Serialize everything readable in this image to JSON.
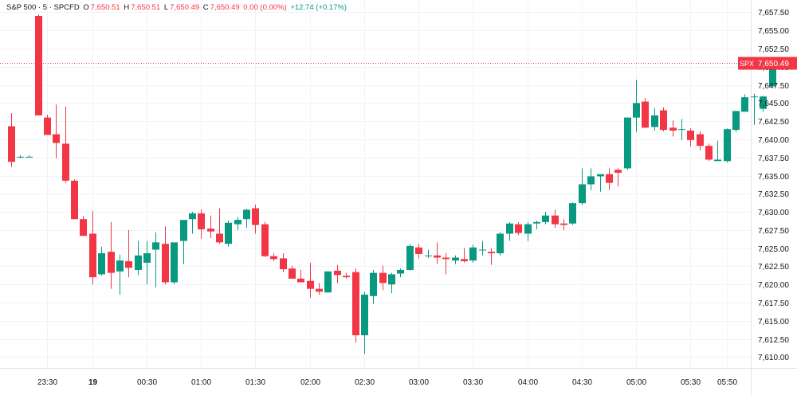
{
  "header": {
    "symbol": "S&P 500 · 5 · SPCFD",
    "o_label": "O",
    "o_value": "7,650.51",
    "h_label": "H",
    "h_value": "7,650.51",
    "l_label": "L",
    "l_value": "7,650.49",
    "c_label": "C",
    "c_value": "7,650.49",
    "change": "0.00 (0.00%)",
    "day_change": "+12.74 (+0.17%)"
  },
  "price_tag": {
    "symbol": "SPX",
    "value": "7,650.49"
  },
  "colors": {
    "up": "#089981",
    "down": "#f23645",
    "grid": "#f0f3fa",
    "axis_text": "#131722",
    "price_line": "#f23645"
  },
  "chart_data": {
    "type": "candlestick",
    "ylim": [
      7608.5,
      7659.2
    ],
    "yticks": [
      7610,
      7612.5,
      7615,
      7617.5,
      7620,
      7622.5,
      7625,
      7627.5,
      7630,
      7632.5,
      7635,
      7637.5,
      7640,
      7642.5,
      7645,
      7647.5,
      7650,
      7652.5,
      7655,
      7657.5
    ],
    "ytick_labels": [
      "7,610.00",
      "7,612.50",
      "7,615.00",
      "7,617.50",
      "7,620.00",
      "7,622.50",
      "7,625.00",
      "7,627.50",
      "7,630.00",
      "7,632.50",
      "7,635.00",
      "7,637.50",
      "7,640.00",
      "7,642.50",
      "7,645.00",
      "7,647.50",
      "7,650.00",
      "7,652.50",
      "7,655.00",
      "7,657.50"
    ],
    "xticks": [
      {
        "index": 4,
        "label": "23:30",
        "bold": false
      },
      {
        "index": 9,
        "label": "19",
        "bold": true
      },
      {
        "index": 15,
        "label": "00:30",
        "bold": false
      },
      {
        "index": 21,
        "label": "01:00",
        "bold": false
      },
      {
        "index": 27,
        "label": "01:30",
        "bold": false
      },
      {
        "index": 33,
        "label": "02:00",
        "bold": false
      },
      {
        "index": 39,
        "label": "02:30",
        "bold": false
      },
      {
        "index": 45,
        "label": "03:00",
        "bold": false
      },
      {
        "index": 51,
        "label": "03:30",
        "bold": false
      },
      {
        "index": 57,
        "label": "04:00",
        "bold": false
      },
      {
        "index": 63,
        "label": "04:30",
        "bold": false
      },
      {
        "index": 69,
        "label": "05:00",
        "bold": false
      },
      {
        "index": 75,
        "label": "05:30",
        "bold": false
      },
      {
        "index": 79,
        "label": "05:50",
        "bold": false
      }
    ],
    "candles": [
      {
        "o": 7641.8,
        "h": 7643.6,
        "l": 7636.2,
        "c": 7636.9
      },
      {
        "o": 7637.6,
        "h": 7637.8,
        "l": 7637.4,
        "c": 7637.6
      },
      {
        "o": 7637.6,
        "h": 7637.8,
        "l": 7637.5,
        "c": 7637.6
      },
      {
        "o": 7657.0,
        "h": 7657.2,
        "l": 7643.3,
        "c": 7643.3
      },
      {
        "o": 7643.0,
        "h": 7643.4,
        "l": 7640.6,
        "c": 7640.6
      },
      {
        "o": 7640.7,
        "h": 7644.8,
        "l": 7637.4,
        "c": 7639.5
      },
      {
        "o": 7639.4,
        "h": 7644.5,
        "l": 7634.0,
        "c": 7634.3
      },
      {
        "o": 7634.3,
        "h": 7634.5,
        "l": 7629.0,
        "c": 7629.0
      },
      {
        "o": 7629.0,
        "h": 7629.4,
        "l": 7626.7,
        "c": 7626.7
      },
      {
        "o": 7627.0,
        "h": 7630.1,
        "l": 7620.0,
        "c": 7621.0
      },
      {
        "o": 7621.4,
        "h": 7625.2,
        "l": 7621.2,
        "c": 7624.3
      },
      {
        "o": 7624.5,
        "h": 7628.6,
        "l": 7619.4,
        "c": 7621.6
      },
      {
        "o": 7621.8,
        "h": 7624.1,
        "l": 7618.6,
        "c": 7623.3
      },
      {
        "o": 7623.2,
        "h": 7627.5,
        "l": 7621.0,
        "c": 7622.3
      },
      {
        "o": 7622.0,
        "h": 7626.0,
        "l": 7621.3,
        "c": 7624.0
      },
      {
        "o": 7623.0,
        "h": 7626.0,
        "l": 7620.0,
        "c": 7624.3
      },
      {
        "o": 7624.8,
        "h": 7627.2,
        "l": 7619.6,
        "c": 7625.8
      },
      {
        "o": 7625.6,
        "h": 7628.0,
        "l": 7620.0,
        "c": 7620.3
      },
      {
        "o": 7620.3,
        "h": 7625.5,
        "l": 7620.0,
        "c": 7625.8
      },
      {
        "o": 7626.0,
        "h": 7628.5,
        "l": 7622.8,
        "c": 7628.9
      },
      {
        "o": 7629.0,
        "h": 7630.0,
        "l": 7627.0,
        "c": 7629.8
      },
      {
        "o": 7629.8,
        "h": 7630.4,
        "l": 7626.3,
        "c": 7627.6
      },
      {
        "o": 7627.7,
        "h": 7629.5,
        "l": 7626.4,
        "c": 7627.3
      },
      {
        "o": 7627.0,
        "h": 7630.5,
        "l": 7625.6,
        "c": 7625.8
      },
      {
        "o": 7625.6,
        "h": 7628.8,
        "l": 7625.2,
        "c": 7628.5
      },
      {
        "o": 7628.3,
        "h": 7629.3,
        "l": 7627.5,
        "c": 7628.9
      },
      {
        "o": 7629.0,
        "h": 7630.4,
        "l": 7627.8,
        "c": 7630.3
      },
      {
        "o": 7630.5,
        "h": 7631.0,
        "l": 7627.0,
        "c": 7628.2
      },
      {
        "o": 7628.3,
        "h": 7628.6,
        "l": 7623.8,
        "c": 7623.9
      },
      {
        "o": 7623.9,
        "h": 7624.3,
        "l": 7623.2,
        "c": 7623.5
      },
      {
        "o": 7623.6,
        "h": 7624.3,
        "l": 7621.7,
        "c": 7622.1
      },
      {
        "o": 7622.2,
        "h": 7622.6,
        "l": 7620.8,
        "c": 7620.8
      },
      {
        "o": 7620.8,
        "h": 7622.0,
        "l": 7620.3,
        "c": 7620.3
      },
      {
        "o": 7620.5,
        "h": 7623.0,
        "l": 7618.2,
        "c": 7619.4
      },
      {
        "o": 7619.4,
        "h": 7620.2,
        "l": 7618.6,
        "c": 7619.0
      },
      {
        "o": 7618.9,
        "h": 7621.8,
        "l": 7618.9,
        "c": 7621.8
      },
      {
        "o": 7621.9,
        "h": 7622.7,
        "l": 7620.2,
        "c": 7621.3
      },
      {
        "o": 7621.2,
        "h": 7621.6,
        "l": 7620.8,
        "c": 7621.0
      },
      {
        "o": 7621.7,
        "h": 7622.2,
        "l": 7612.0,
        "c": 7613.0
      },
      {
        "o": 7613.0,
        "h": 7619.0,
        "l": 7610.4,
        "c": 7618.6
      },
      {
        "o": 7618.4,
        "h": 7622.0,
        "l": 7617.3,
        "c": 7621.6
      },
      {
        "o": 7621.6,
        "h": 7622.6,
        "l": 7619.2,
        "c": 7620.2
      },
      {
        "o": 7620.0,
        "h": 7621.6,
        "l": 7618.8,
        "c": 7621.4
      },
      {
        "o": 7621.5,
        "h": 7622.2,
        "l": 7621.0,
        "c": 7622.0
      },
      {
        "o": 7622.0,
        "h": 7625.6,
        "l": 7621.9,
        "c": 7625.3
      },
      {
        "o": 7625.1,
        "h": 7625.6,
        "l": 7623.6,
        "c": 7624.2
      },
      {
        "o": 7624.0,
        "h": 7624.8,
        "l": 7623.6,
        "c": 7624.0
      },
      {
        "o": 7624.0,
        "h": 7625.8,
        "l": 7622.8,
        "c": 7623.7
      },
      {
        "o": 7623.7,
        "h": 7624.3,
        "l": 7621.4,
        "c": 7623.5
      },
      {
        "o": 7623.3,
        "h": 7624.0,
        "l": 7622.8,
        "c": 7623.7
      },
      {
        "o": 7623.5,
        "h": 7625.0,
        "l": 7623.0,
        "c": 7623.2
      },
      {
        "o": 7623.3,
        "h": 7625.5,
        "l": 7623.0,
        "c": 7625.1
      },
      {
        "o": 7624.8,
        "h": 7626.0,
        "l": 7624.0,
        "c": 7624.8
      },
      {
        "o": 7624.5,
        "h": 7625.0,
        "l": 7622.7,
        "c": 7624.3
      },
      {
        "o": 7624.3,
        "h": 7627.2,
        "l": 7624.0,
        "c": 7627.0
      },
      {
        "o": 7627.0,
        "h": 7628.6,
        "l": 7626.0,
        "c": 7628.4
      },
      {
        "o": 7628.3,
        "h": 7628.6,
        "l": 7626.8,
        "c": 7627.1
      },
      {
        "o": 7627.0,
        "h": 7628.6,
        "l": 7626.0,
        "c": 7628.3
      },
      {
        "o": 7628.4,
        "h": 7628.8,
        "l": 7627.6,
        "c": 7628.6
      },
      {
        "o": 7628.6,
        "h": 7630.0,
        "l": 7628.3,
        "c": 7629.5
      },
      {
        "o": 7629.5,
        "h": 7630.3,
        "l": 7627.8,
        "c": 7628.3
      },
      {
        "o": 7628.4,
        "h": 7629.0,
        "l": 7627.5,
        "c": 7628.2
      },
      {
        "o": 7628.4,
        "h": 7631.3,
        "l": 7628.2,
        "c": 7631.2
      },
      {
        "o": 7631.2,
        "h": 7636.0,
        "l": 7631.0,
        "c": 7633.8
      },
      {
        "o": 7633.8,
        "h": 7636.0,
        "l": 7633.0,
        "c": 7634.9
      },
      {
        "o": 7634.9,
        "h": 7635.0,
        "l": 7632.8,
        "c": 7635.2
      },
      {
        "o": 7635.2,
        "h": 7636.0,
        "l": 7633.0,
        "c": 7634.0
      },
      {
        "o": 7635.8,
        "h": 7636.0,
        "l": 7633.5,
        "c": 7635.4
      },
      {
        "o": 7636.0,
        "h": 7643.0,
        "l": 7635.8,
        "c": 7643.0
      },
      {
        "o": 7643.0,
        "h": 7648.2,
        "l": 7641.0,
        "c": 7645.0
      },
      {
        "o": 7645.2,
        "h": 7645.7,
        "l": 7641.6,
        "c": 7641.6
      },
      {
        "o": 7641.7,
        "h": 7644.3,
        "l": 7641.2,
        "c": 7643.3
      },
      {
        "o": 7644.0,
        "h": 7644.4,
        "l": 7641.1,
        "c": 7641.3
      },
      {
        "o": 7641.6,
        "h": 7642.6,
        "l": 7640.4,
        "c": 7641.2
      },
      {
        "o": 7641.3,
        "h": 7642.8,
        "l": 7639.9,
        "c": 7641.4
      },
      {
        "o": 7641.2,
        "h": 7641.5,
        "l": 7639.0,
        "c": 7639.9
      },
      {
        "o": 7640.7,
        "h": 7641.1,
        "l": 7638.5,
        "c": 7639.1
      },
      {
        "o": 7639.1,
        "h": 7639.4,
        "l": 7637.0,
        "c": 7637.2
      },
      {
        "o": 7637.0,
        "h": 7639.8,
        "l": 7637.0,
        "c": 7637.2
      },
      {
        "o": 7637.0,
        "h": 7641.5,
        "l": 7636.8,
        "c": 7641.4
      },
      {
        "o": 7641.3,
        "h": 7643.9,
        "l": 7641.0,
        "c": 7643.9
      },
      {
        "o": 7643.8,
        "h": 7646.2,
        "l": 7643.8,
        "c": 7645.8
      },
      {
        "o": 7645.9,
        "h": 7646.3,
        "l": 7642.0,
        "c": 7645.9
      },
      {
        "o": 7644.2,
        "h": 7646.0,
        "l": 7643.8,
        "c": 7645.9
      },
      {
        "o": 7647.3,
        "h": 7650.5,
        "l": 7647.3,
        "c": 7650.5
      }
    ],
    "last_price": 7650.49
  }
}
